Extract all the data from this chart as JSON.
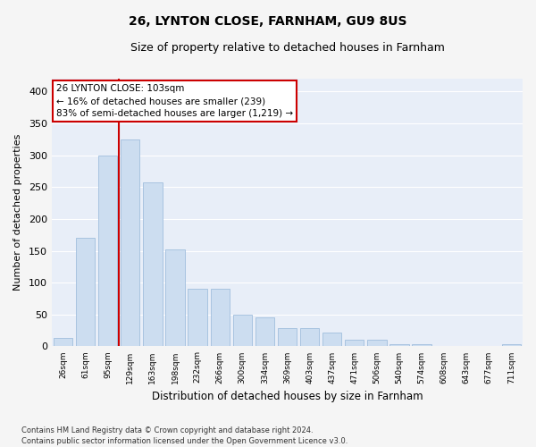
{
  "title": "26, LYNTON CLOSE, FARNHAM, GU9 8US",
  "subtitle": "Size of property relative to detached houses in Farnham",
  "xlabel": "Distribution of detached houses by size in Farnham",
  "ylabel": "Number of detached properties",
  "bar_color": "#ccddf0",
  "bar_edge_color": "#a0bedd",
  "background_color": "#e8eef8",
  "grid_color": "#ffffff",
  "categories": [
    "26sqm",
    "61sqm",
    "95sqm",
    "129sqm",
    "163sqm",
    "198sqm",
    "232sqm",
    "266sqm",
    "300sqm",
    "334sqm",
    "369sqm",
    "403sqm",
    "437sqm",
    "471sqm",
    "506sqm",
    "540sqm",
    "574sqm",
    "608sqm",
    "643sqm",
    "677sqm",
    "711sqm"
  ],
  "values": [
    13,
    170,
    300,
    325,
    258,
    152,
    91,
    91,
    50,
    45,
    29,
    29,
    22,
    11,
    10,
    4,
    4,
    1,
    1,
    1,
    3
  ],
  "annotation_text": "26 LYNTON CLOSE: 103sqm\n← 16% of detached houses are smaller (239)\n83% of semi-detached houses are larger (1,219) →",
  "vline_x": 2.5,
  "vline_color": "#cc0000",
  "annotation_box_color": "#ffffff",
  "annotation_box_edge": "#cc0000",
  "footer": "Contains HM Land Registry data © Crown copyright and database right 2024.\nContains public sector information licensed under the Open Government Licence v3.0.",
  "ylim": [
    0,
    420
  ],
  "yticks": [
    0,
    50,
    100,
    150,
    200,
    250,
    300,
    350,
    400
  ],
  "fig_width": 6.0,
  "fig_height": 5.0,
  "fig_bg": "#f5f5f5"
}
